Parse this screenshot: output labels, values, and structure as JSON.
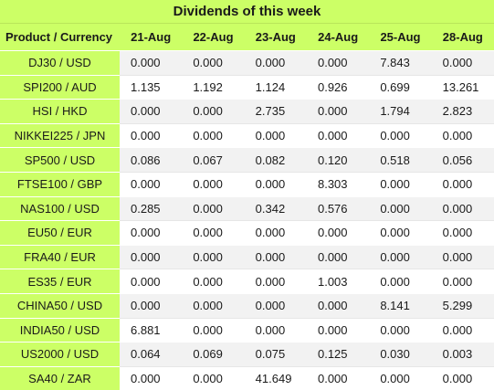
{
  "title": "Dividends of this week",
  "header": {
    "product": "Product / Currency",
    "dates": [
      "21-Aug",
      "22-Aug",
      "23-Aug",
      "24-Aug",
      "25-Aug",
      "28-Aug"
    ]
  },
  "rows": [
    {
      "product": "DJ30 / USD",
      "values": [
        "0.000",
        "0.000",
        "0.000",
        "0.000",
        "7.843",
        "0.000"
      ]
    },
    {
      "product": "SPI200 / AUD",
      "values": [
        "1.135",
        "1.192",
        "1.124",
        "0.926",
        "0.699",
        "13.261"
      ]
    },
    {
      "product": "HSI / HKD",
      "values": [
        "0.000",
        "0.000",
        "2.735",
        "0.000",
        "1.794",
        "2.823"
      ]
    },
    {
      "product": "NIKKEI225 / JPN",
      "values": [
        "0.000",
        "0.000",
        "0.000",
        "0.000",
        "0.000",
        "0.000"
      ]
    },
    {
      "product": "SP500 / USD",
      "values": [
        "0.086",
        "0.067",
        "0.082",
        "0.120",
        "0.518",
        "0.056"
      ]
    },
    {
      "product": "FTSE100 / GBP",
      "values": [
        "0.000",
        "0.000",
        "0.000",
        "8.303",
        "0.000",
        "0.000"
      ]
    },
    {
      "product": "NAS100 / USD",
      "values": [
        "0.285",
        "0.000",
        "0.342",
        "0.576",
        "0.000",
        "0.000"
      ]
    },
    {
      "product": "EU50 / EUR",
      "values": [
        "0.000",
        "0.000",
        "0.000",
        "0.000",
        "0.000",
        "0.000"
      ]
    },
    {
      "product": "FRA40 / EUR",
      "values": [
        "0.000",
        "0.000",
        "0.000",
        "0.000",
        "0.000",
        "0.000"
      ]
    },
    {
      "product": "ES35 / EUR",
      "values": [
        "0.000",
        "0.000",
        "0.000",
        "1.003",
        "0.000",
        "0.000"
      ]
    },
    {
      "product": "CHINA50 / USD",
      "values": [
        "0.000",
        "0.000",
        "0.000",
        "0.000",
        "8.141",
        "5.299"
      ]
    },
    {
      "product": "INDIA50 / USD",
      "values": [
        "6.881",
        "0.000",
        "0.000",
        "0.000",
        "0.000",
        "0.000"
      ]
    },
    {
      "product": "US2000 / USD",
      "values": [
        "0.064",
        "0.069",
        "0.075",
        "0.125",
        "0.030",
        "0.003"
      ]
    },
    {
      "product": "SA40 / ZAR",
      "values": [
        "0.000",
        "0.000",
        "41.649",
        "0.000",
        "0.000",
        "0.000"
      ]
    }
  ],
  "colors": {
    "header_bg": "#ccff66",
    "row_alt_bg": "#f2f2f2",
    "row_bg": "#ffffff",
    "text": "#1a1a1a"
  }
}
